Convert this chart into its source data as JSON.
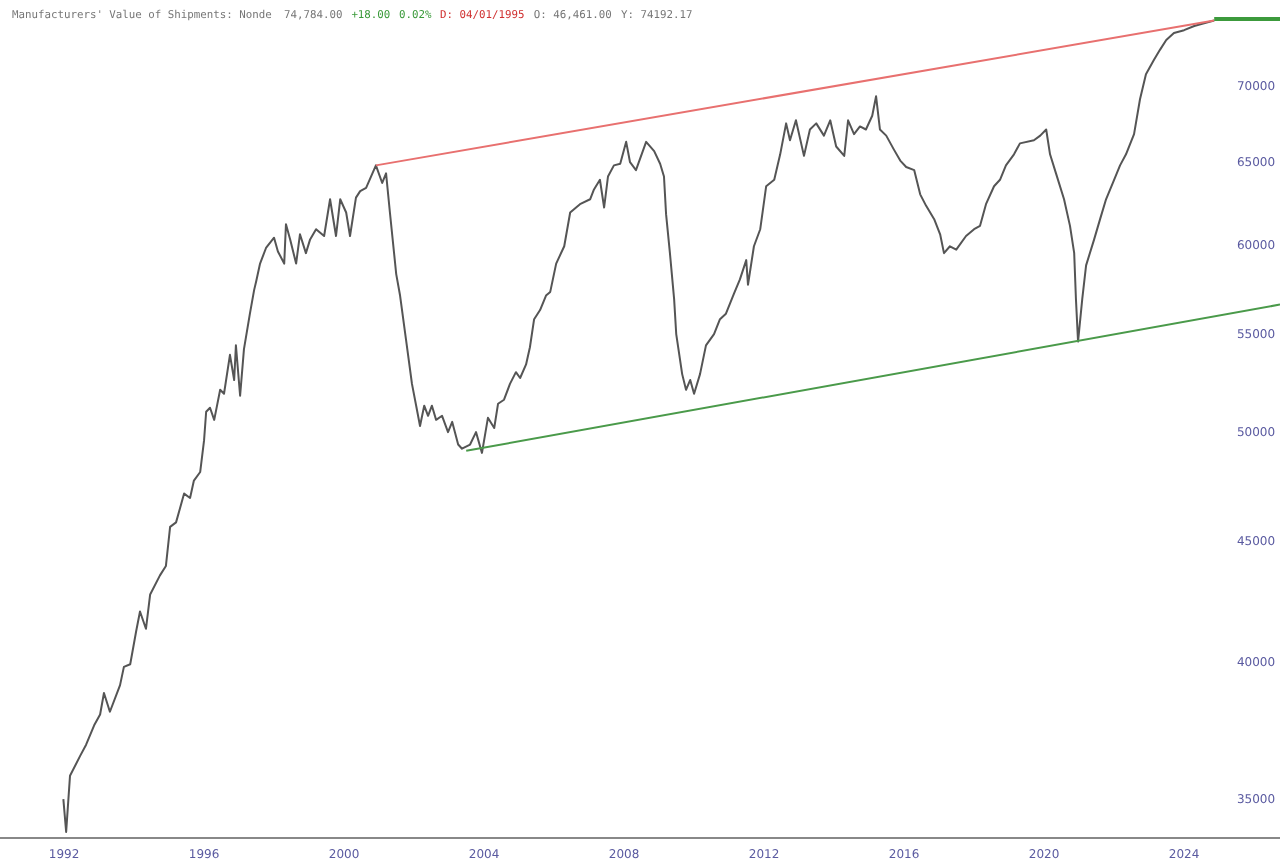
{
  "chart_data": {
    "type": "line",
    "title": "Manufacturers' Value of Shipments: Nonde",
    "annotations": [
      "74,784.00",
      "+18.00",
      "0.02%",
      "D: 04/01/1995",
      "O: 46,461.00",
      "Y: 74192.17"
    ],
    "xlim": [
      1990.17,
      2026.74
    ],
    "xticks": [
      1992,
      1996,
      2000,
      2004,
      2008,
      2012,
      2016,
      2020,
      2024
    ],
    "ylim": [
      33700,
      76100
    ],
    "yticks": [
      35000,
      40000,
      45000,
      50000,
      55000,
      60000,
      65000,
      70000
    ],
    "log": true,
    "grid": false,
    "line_style": "solid",
    "marker": "none",
    "series": [
      {
        "color": "#555555",
        "x": [
          1991.98,
          1992.06,
          1992.17,
          1992.46,
          1992.63,
          1992.86,
          1993.03,
          1993.14,
          1993.31,
          1993.6,
          1993.71,
          1993.89,
          1994.06,
          1994.17,
          1994.34,
          1994.46,
          1994.74,
          1994.91,
          1995.03,
          1995.2,
          1995.43,
          1995.6,
          1995.71,
          1995.89,
          1996.0,
          1996.06,
          1996.17,
          1996.29,
          1996.46,
          1996.57,
          1996.74,
          1996.86,
          1996.91,
          1997.03,
          1997.14,
          1997.31,
          1997.43,
          1997.49,
          1997.6,
          1997.77,
          1998.0,
          1998.11,
          1998.29,
          1998.34,
          1998.46,
          1998.63,
          1998.74,
          1998.91,
          1999.03,
          1999.2,
          1999.43,
          1999.6,
          1999.77,
          1999.89,
          2000.06,
          2000.17,
          2000.34,
          2000.46,
          2000.63,
          2000.91,
          2001.09,
          2001.2,
          2001.31,
          2001.49,
          2001.6,
          2001.77,
          2001.94,
          2002.06,
          2002.17,
          2002.29,
          2002.4,
          2002.51,
          2002.63,
          2002.8,
          2002.97,
          2003.09,
          2003.26,
          2003.37,
          2003.6,
          2003.77,
          2003.94,
          2004.11,
          2004.29,
          2004.4,
          2004.57,
          2004.74,
          2004.91,
          2005.03,
          2005.2,
          2005.31,
          2005.43,
          2005.6,
          2005.77,
          2005.89,
          2006.06,
          2006.29,
          2006.46,
          2006.57,
          2006.74,
          2007.03,
          2007.14,
          2007.31,
          2007.43,
          2007.54,
          2007.71,
          2007.89,
          2008.06,
          2008.17,
          2008.34,
          2008.63,
          2008.86,
          2009.03,
          2009.14,
          2009.2,
          2009.31,
          2009.43,
          2009.49,
          2009.66,
          2009.77,
          2009.89,
          2010.0,
          2010.17,
          2010.34,
          2010.57,
          2010.74,
          2010.91,
          2011.14,
          2011.31,
          2011.49,
          2011.54,
          2011.71,
          2011.89,
          2012.06,
          2012.29,
          2012.46,
          2012.63,
          2012.74,
          2012.91,
          2013.14,
          2013.31,
          2013.49,
          2013.71,
          2013.89,
          2014.06,
          2014.29,
          2014.4,
          2014.57,
          2014.74,
          2014.91,
          2015.09,
          2015.2,
          2015.31,
          2015.49,
          2015.71,
          2015.89,
          2016.06,
          2016.29,
          2016.46,
          2016.63,
          2016.86,
          2017.03,
          2017.14,
          2017.31,
          2017.49,
          2017.77,
          2018.0,
          2018.17,
          2018.34,
          2018.57,
          2018.74,
          2018.91,
          2019.14,
          2019.31,
          2019.71,
          2019.89,
          2020.06,
          2020.17,
          2020.34,
          2020.57,
          2020.74,
          2020.86,
          2020.91,
          2020.97,
          2021.09,
          2021.2,
          2021.43,
          2021.6,
          2021.77,
          2022.0,
          2022.17,
          2022.34,
          2022.57,
          2022.74,
          2022.91,
          2023.14,
          2023.31,
          2023.49,
          2023.71,
          2024.0,
          2024.29,
          2024.57,
          2024.86
        ],
        "values": [
          35000,
          33900,
          35800,
          36500,
          36900,
          37600,
          38000,
          38800,
          38100,
          39100,
          39800,
          39900,
          41200,
          42000,
          41300,
          42700,
          43500,
          43900,
          45600,
          45800,
          47100,
          46900,
          47700,
          48100,
          49600,
          51000,
          51200,
          50600,
          52100,
          51900,
          53900,
          52600,
          54400,
          51800,
          54200,
          56100,
          57400,
          57900,
          58900,
          59800,
          60400,
          59600,
          58900,
          61200,
          60300,
          58900,
          60600,
          59500,
          60300,
          60900,
          60500,
          62700,
          60500,
          62700,
          61900,
          60500,
          62800,
          63200,
          63400,
          64800,
          63700,
          64300,
          61900,
          58300,
          57100,
          54700,
          52400,
          51300,
          50300,
          51300,
          50800,
          51300,
          50600,
          50800,
          50000,
          50500,
          49400,
          49200,
          49400,
          50000,
          49000,
          50700,
          50200,
          51400,
          51600,
          52400,
          53000,
          52700,
          53400,
          54300,
          55800,
          56300,
          57100,
          57300,
          58900,
          59900,
          61900,
          62100,
          62400,
          62700,
          63300,
          63900,
          62200,
          64100,
          64800,
          64900,
          66300,
          65000,
          64500,
          66300,
          65700,
          64900,
          64100,
          61800,
          59500,
          56900,
          55000,
          52900,
          52100,
          52600,
          51900,
          52900,
          54400,
          55000,
          55800,
          56100,
          57200,
          58000,
          59100,
          57700,
          59900,
          60900,
          63500,
          63900,
          65500,
          67500,
          66400,
          67700,
          65400,
          67100,
          67500,
          66700,
          67700,
          66000,
          65400,
          67700,
          66800,
          67300,
          67100,
          68000,
          69300,
          67100,
          66700,
          65800,
          65100,
          64700,
          64500,
          63000,
          62300,
          61500,
          60600,
          59500,
          59900,
          59700,
          60500,
          60900,
          61100,
          62400,
          63500,
          63900,
          64800,
          65500,
          66200,
          66400,
          66700,
          67100,
          65500,
          64300,
          62700,
          61100,
          59500,
          56900,
          54600,
          56900,
          58800,
          60300,
          61500,
          62700,
          63900,
          64800,
          65500,
          66800,
          69100,
          70800,
          71800,
          72500,
          73200,
          73700,
          73900,
          74200,
          74400,
          74600
        ]
      },
      {
        "type": "line",
        "color": "#e8706f",
        "x": [
          2000.91,
          2024.86
        ],
        "values": [
          64800,
          74600
        ]
      },
      {
        "type": "line",
        "color": "#4a9a4a",
        "x": [
          2003.49,
          2026.74
        ],
        "values": [
          49100,
          56600
        ]
      },
      {
        "type": "line",
        "color": "#3c9a3c",
        "x": [
          2024.86,
          2026.74
        ],
        "values": [
          74700,
          74700
        ]
      }
    ]
  }
}
